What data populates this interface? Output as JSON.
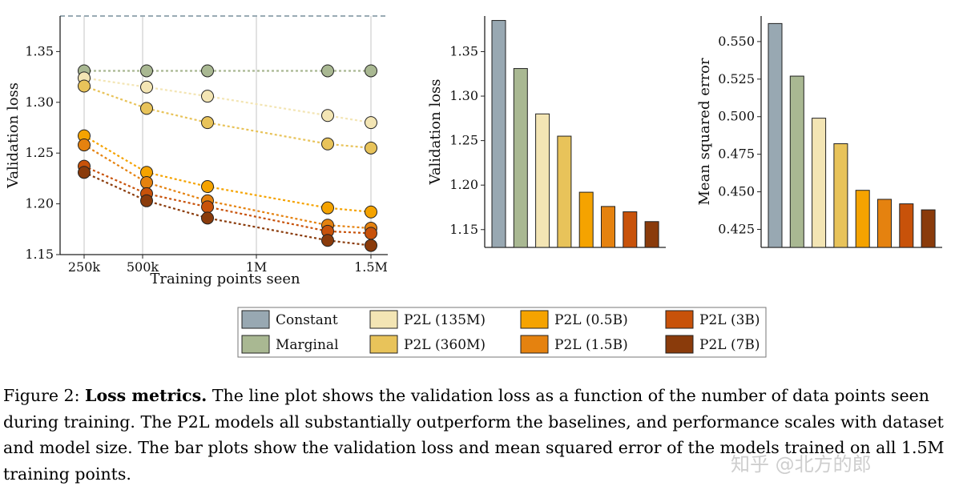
{
  "chart_data": [
    {
      "type": "line",
      "ylabel": "Validation loss",
      "xlabel": "Training points seen",
      "x_ticks": [
        "250k",
        "500k",
        "1M",
        "1.5M"
      ],
      "y_ticks": [
        "1.35",
        "1.30",
        "1.25",
        "1.20",
        "1.15"
      ],
      "ylim": [
        1.15,
        1.385
      ],
      "grid": "vertical",
      "x_points": [
        250000,
        500000,
        770000,
        1300000,
        1500000
      ],
      "reference_line": {
        "y": 1.385,
        "style": "dashed",
        "color": "#9aabb4"
      },
      "series": [
        {
          "name": "Marginal",
          "color": "#a9b892",
          "values": [
            1.331,
            1.331,
            1.331,
            1.331,
            1.331
          ]
        },
        {
          "name": "P2L (135M)",
          "color": "#f3e5b4",
          "values": [
            1.324,
            1.315,
            1.306,
            1.287,
            1.28
          ]
        },
        {
          "name": "P2L (360M)",
          "color": "#e8c35a",
          "values": [
            1.316,
            1.294,
            1.28,
            1.259,
            1.255
          ]
        },
        {
          "name": "P2L (0.5B)",
          "color": "#f5a300",
          "values": [
            1.267,
            1.231,
            1.217,
            1.196,
            1.192
          ]
        },
        {
          "name": "P2L (1.5B)",
          "color": "#e5820f",
          "values": [
            1.258,
            1.221,
            1.203,
            1.179,
            1.176
          ]
        },
        {
          "name": "P2L (3B)",
          "color": "#c8520a",
          "values": [
            1.237,
            1.21,
            1.197,
            1.173,
            1.171
          ]
        },
        {
          "name": "P2L (7B)",
          "color": "#8a3b0b",
          "values": [
            1.231,
            1.203,
            1.186,
            1.164,
            1.159
          ]
        }
      ]
    },
    {
      "type": "bar",
      "ylabel": "Validation loss",
      "y_ticks": [
        "1.35",
        "1.30",
        "1.25",
        "1.20",
        "1.15"
      ],
      "ylim": [
        1.13,
        1.39
      ],
      "categories": [
        "Constant",
        "Marginal",
        "P2L (135M)",
        "P2L (360M)",
        "P2L (0.5B)",
        "P2L (1.5B)",
        "P2L (3B)",
        "P2L (7B)"
      ],
      "values": [
        1.385,
        1.331,
        1.28,
        1.255,
        1.192,
        1.176,
        1.17,
        1.159
      ],
      "colors": [
        "#98a8b2",
        "#a9b892",
        "#f3e5b4",
        "#e8c35a",
        "#f5a300",
        "#e5820f",
        "#c8520a",
        "#8a3b0b"
      ]
    },
    {
      "type": "bar",
      "ylabel": "Mean squared error",
      "y_ticks": [
        "0.550",
        "0.525",
        "0.500",
        "0.475",
        "0.450",
        "0.425"
      ],
      "ylim": [
        0.413,
        0.567
      ],
      "categories": [
        "Constant",
        "Marginal",
        "P2L (135M)",
        "P2L (360M)",
        "P2L (0.5B)",
        "P2L (1.5B)",
        "P2L (3B)",
        "P2L (7B)"
      ],
      "values": [
        0.562,
        0.527,
        0.499,
        0.482,
        0.451,
        0.445,
        0.442,
        0.438
      ],
      "colors": [
        "#98a8b2",
        "#a9b892",
        "#f3e5b4",
        "#e8c35a",
        "#f5a300",
        "#e5820f",
        "#c8520a",
        "#8a3b0b"
      ]
    }
  ],
  "legend": [
    {
      "label": "Constant",
      "color": "#98a8b2"
    },
    {
      "label": "Marginal",
      "color": "#a9b892"
    },
    {
      "label": "P2L (135M)",
      "color": "#f3e5b4"
    },
    {
      "label": "P2L (360M)",
      "color": "#e8c35a"
    },
    {
      "label": "P2L (0.5B)",
      "color": "#f5a300"
    },
    {
      "label": "P2L (1.5B)",
      "color": "#e5820f"
    },
    {
      "label": "P2L (3B)",
      "color": "#c8520a"
    },
    {
      "label": "P2L (7B)",
      "color": "#8a3b0b"
    }
  ],
  "caption": {
    "prefix": "Figure 2: ",
    "bold": "Loss metrics.",
    "text": " The line plot shows the validation loss as a function of the number of data points seen during training. The P2L models all substantially outperform the baselines, and performance scales with dataset and model size. The bar plots show the validation loss and mean squared error of the models trained on all 1.5M training points."
  },
  "watermark": "知乎 @北方的郎"
}
